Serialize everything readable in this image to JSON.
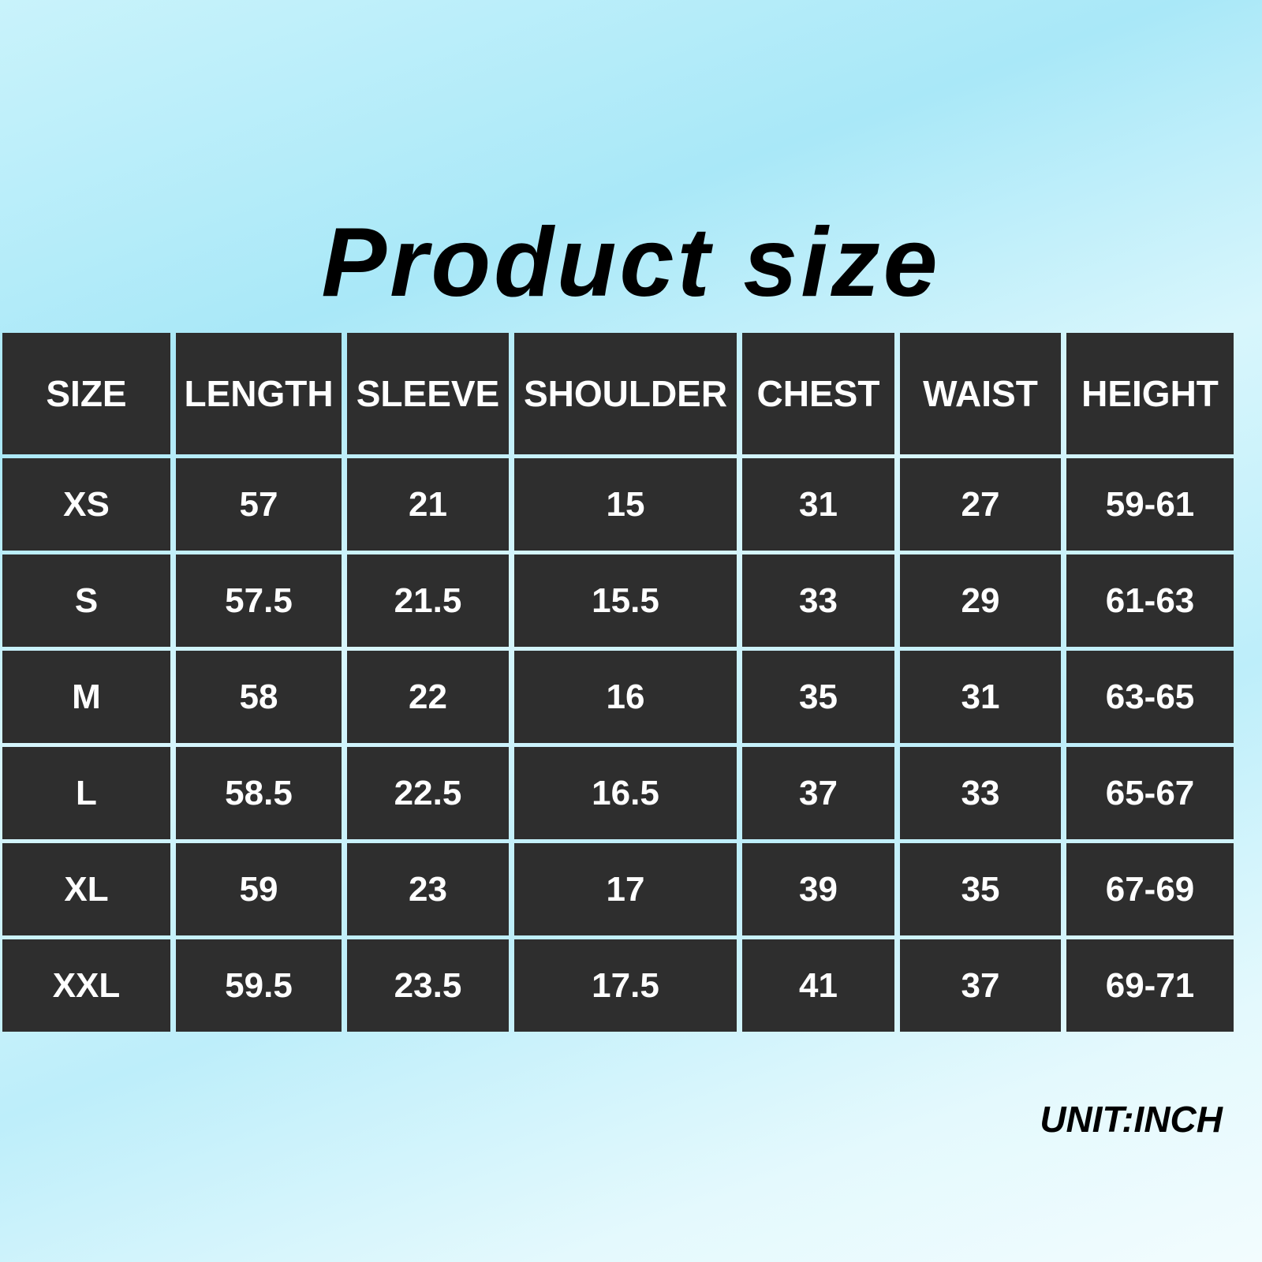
{
  "title": "Product size",
  "unit_label": "UNIT:INCH",
  "table": {
    "headers": [
      "SIZE",
      "LENGTH",
      "SLEEVE",
      "SHOULDER",
      "CHEST",
      "WAIST",
      "HEIGHT"
    ],
    "rows": [
      [
        "XS",
        "57",
        "21",
        "15",
        "31",
        "27",
        "59-61"
      ],
      [
        "S",
        "57.5",
        "21.5",
        "15.5",
        "33",
        "29",
        "61-63"
      ],
      [
        "M",
        "58",
        "22",
        "16",
        "35",
        "31",
        "63-65"
      ],
      [
        "L",
        "58.5",
        "22.5",
        "16.5",
        "37",
        "33",
        "65-67"
      ],
      [
        "XL",
        "59",
        "23",
        "17",
        "39",
        "35",
        "67-69"
      ],
      [
        "XXL",
        "59.5",
        "23.5",
        "17.5",
        "41",
        "37",
        "69-71"
      ]
    ]
  }
}
